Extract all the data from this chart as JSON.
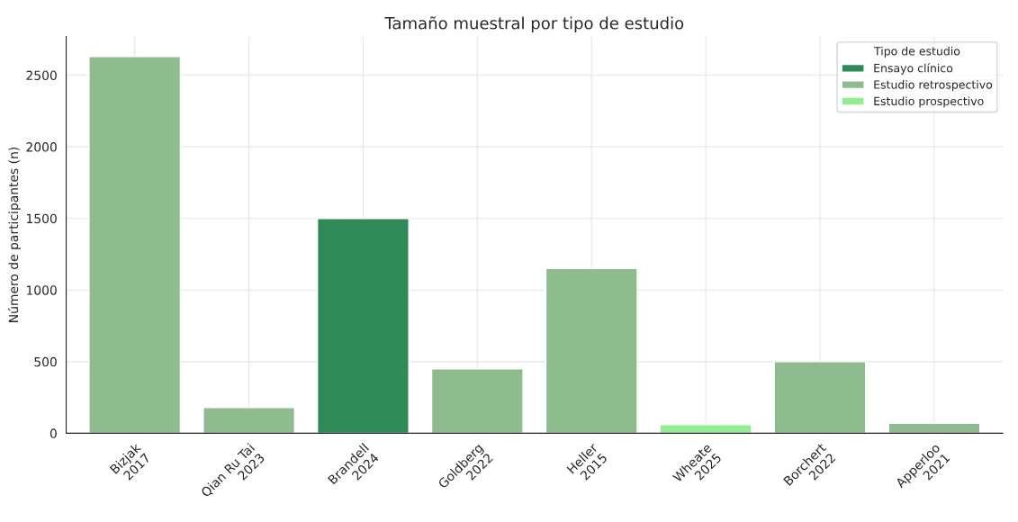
{
  "chart_data": {
    "type": "bar",
    "title": "Tamaño muestral por tipo de estudio",
    "ylabel": "Número de participantes (n)",
    "legend_title": "Tipo de estudio",
    "categories": [
      "Bizjak\n2017",
      "Qian Ru Tai\n2023",
      "Brandell\n2024",
      "Goldberg\n2022",
      "Heller\n2015",
      "Wheate\n2025",
      "Borchert\n2022",
      "Apperloo\n2021"
    ],
    "series": [
      {
        "name": "Ensayo clínico",
        "color": "#2e8b57",
        "values": [
          null,
          null,
          1500,
          null,
          null,
          null,
          null,
          null
        ]
      },
      {
        "name": "Estudio retrospectivo",
        "color": "#8fbc8f",
        "values": [
          2630,
          180,
          null,
          450,
          1150,
          null,
          500,
          70
        ]
      },
      {
        "name": "Estudio prospectivo",
        "color": "#90ee90",
        "values": [
          null,
          null,
          null,
          null,
          null,
          60,
          null,
          null
        ]
      }
    ],
    "ylim": [
      0,
      2770
    ],
    "yticks": [
      0,
      500,
      1000,
      1500,
      2000,
      2500
    ],
    "grid": true,
    "legend": "top right"
  }
}
